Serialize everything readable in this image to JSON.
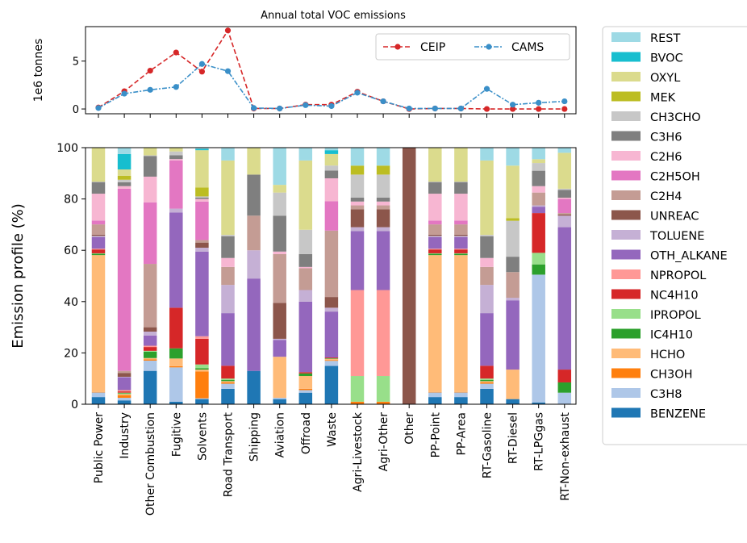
{
  "chart_data": [
    {
      "type": "line",
      "title": "Annual total VOC emissions",
      "ylabel": "1e6 tonnes",
      "ylim": [
        -0.5,
        8.6
      ],
      "yticks": [
        0,
        5
      ],
      "grid": false,
      "legend_position": "top-right",
      "x": [
        "Public Power",
        "Industry",
        "Other Combustion",
        "Fugitive",
        "Solvents",
        "Road Transport",
        "Shipping",
        "Aviation",
        "Offroad",
        "Waste",
        "Agri-Livestock",
        "Agri-Other",
        "Other",
        "PP-Point",
        "PP-Area",
        "RT-Gasoline",
        "RT-Diesel",
        "RT-LPGgas",
        "RT-Non-exhaust"
      ],
      "series": [
        {
          "name": "CEIP",
          "color": "#d62728",
          "values": [
            0.15,
            1.85,
            4.0,
            5.9,
            3.9,
            8.2,
            0.05,
            0.05,
            0.45,
            0.45,
            1.8,
            0.8,
            0.0,
            0.05,
            0.05,
            0.0,
            0.0,
            0.0,
            0.0
          ]
        },
        {
          "name": "CAMS",
          "color": "#3a8fc8",
          "values": [
            0.1,
            1.6,
            2.0,
            2.3,
            4.7,
            3.95,
            0.1,
            0.05,
            0.4,
            0.3,
            1.7,
            0.8,
            0.05,
            0.05,
            0.05,
            2.1,
            0.45,
            0.65,
            0.8
          ]
        }
      ]
    },
    {
      "type": "bar",
      "stacked": true,
      "ylabel": "Emission profile (%)",
      "ylim": [
        0,
        100
      ],
      "yticks": [
        0,
        20,
        40,
        60,
        80,
        100
      ],
      "grid": false,
      "legend_position": "right-outside",
      "categories": [
        "Public Power",
        "Industry",
        "Other Combustion",
        "Fugitive",
        "Solvents",
        "Road Transport",
        "Shipping",
        "Aviation",
        "Offroad",
        "Waste",
        "Agri-Livestock",
        "Agri-Other",
        "Other",
        "PP-Point",
        "PP-Area",
        "RT-Gasoline",
        "RT-Diesel",
        "RT-LPGgas",
        "RT-Non-exhaust"
      ],
      "species": [
        {
          "name": "BENZENE",
          "color": "#1f77b4"
        },
        {
          "name": "C3H8",
          "color": "#aec7e8"
        },
        {
          "name": "CH3OH",
          "color": "#ff7f0e"
        },
        {
          "name": "HCHO",
          "color": "#ffbb78"
        },
        {
          "name": "IC4H10",
          "color": "#2ca02c"
        },
        {
          "name": "IPROPOL",
          "color": "#98df8a"
        },
        {
          "name": "NC4H10",
          "color": "#d62728"
        },
        {
          "name": "NPROPOL",
          "color": "#ff9896"
        },
        {
          "name": "OTH_ALKANE",
          "color": "#9467bd"
        },
        {
          "name": "TOLUENE",
          "color": "#c5b0d5"
        },
        {
          "name": "UNREAC",
          "color": "#8c564b"
        },
        {
          "name": "C2H4",
          "color": "#c49c94"
        },
        {
          "name": "C2H5OH",
          "color": "#e377c2"
        },
        {
          "name": "C2H6",
          "color": "#f7b6d2"
        },
        {
          "name": "C3H6",
          "color": "#7f7f7f"
        },
        {
          "name": "CH3CHO",
          "color": "#c7c7c7"
        },
        {
          "name": "MEK",
          "color": "#bcbd22"
        },
        {
          "name": "OXYL",
          "color": "#dbdb8d"
        },
        {
          "name": "BVOC",
          "color": "#17becf"
        },
        {
          "name": "REST",
          "color": "#9edae5"
        }
      ],
      "profiles": [
        [
          2.8,
          1.8,
          0.2,
          53.5,
          0.5,
          0.2,
          1.5,
          0.3,
          4.5,
          0.5,
          0.5,
          4.0,
          1.5,
          10.5,
          4.5,
          0.3,
          0.2,
          13.0,
          0.0,
          0.0
        ],
        [
          1.5,
          1.0,
          1.0,
          0.5,
          0.3,
          0.2,
          0.5,
          0.5,
          5.0,
          0.2,
          1.5,
          0.8,
          71.0,
          1.0,
          1.5,
          1.0,
          1.5,
          2.5,
          6.0,
          2.5
        ],
        [
          13.0,
          4.0,
          0.5,
          0.5,
          2.5,
          0.3,
          1.5,
          0.5,
          4.0,
          1.5,
          1.7,
          24.7,
          24.0,
          10.0,
          8.0,
          0.3,
          0.0,
          3.0,
          0.0,
          0.0
        ],
        [
          1.0,
          13.5,
          0.5,
          3.0,
          4.0,
          0.0,
          16.0,
          0.0,
          37.5,
          1.5,
          0.0,
          0.0,
          19.0,
          0.5,
          1.5,
          1.5,
          0.0,
          1.5,
          0.0,
          0.0
        ],
        [
          2.0,
          0.3,
          10.5,
          0.7,
          0.5,
          1.5,
          10.0,
          1.0,
          33.0,
          1.5,
          2.0,
          1.0,
          15.0,
          1.0,
          0.5,
          0.5,
          3.5,
          14.5,
          0.5,
          0.5
        ],
        [
          6.0,
          2.0,
          0.5,
          0.5,
          0.5,
          0.5,
          5.0,
          0.0,
          20.5,
          11.0,
          0.0,
          7.0,
          0.0,
          3.5,
          8.5,
          0.5,
          0.0,
          29.0,
          0.0,
          5.0
        ],
        [
          13.0,
          0.0,
          0.0,
          0.0,
          0.0,
          0.0,
          0.0,
          0.0,
          36.0,
          11.0,
          0.0,
          13.5,
          0.0,
          0.0,
          16.0,
          0.0,
          0.0,
          10.5,
          0.0,
          0.0
        ],
        [
          2.0,
          0.5,
          0.0,
          16.0,
          0.0,
          0.0,
          0.0,
          0.0,
          6.5,
          0.5,
          14.0,
          19.0,
          0.0,
          1.0,
          14.0,
          9.0,
          0.0,
          3.0,
          0.0,
          14.5
        ],
        [
          4.5,
          1.0,
          0.5,
          5.0,
          1.0,
          0.0,
          0.5,
          0.0,
          27.5,
          4.5,
          0.0,
          8.5,
          0.0,
          0.5,
          5.0,
          9.5,
          0.0,
          27.0,
          0.0,
          5.0
        ],
        [
          15.0,
          2.0,
          0.3,
          0.5,
          0.2,
          0.0,
          0.3,
          0.0,
          18.0,
          1.5,
          4.2,
          26.0,
          11.5,
          9.0,
          3.0,
          2.0,
          0.0,
          4.5,
          1.5,
          1.0
        ],
        [
          0.0,
          0.0,
          1.0,
          0.0,
          0.0,
          10.0,
          0.0,
          33.5,
          23.0,
          1.5,
          7.0,
          1.5,
          0.0,
          1.5,
          1.5,
          9.0,
          3.5,
          0.0,
          0.0,
          7.0
        ],
        [
          0.0,
          0.0,
          1.0,
          0.0,
          0.0,
          10.0,
          0.0,
          33.5,
          23.0,
          1.5,
          7.0,
          1.5,
          0.0,
          1.5,
          1.5,
          9.0,
          3.5,
          0.0,
          0.0,
          7.0
        ],
        [
          0.0,
          0.0,
          0.0,
          0.0,
          0.0,
          0.0,
          0.0,
          0.0,
          0.0,
          0.0,
          100.0,
          0.0,
          0.0,
          0.0,
          0.0,
          0.0,
          0.0,
          0.0,
          0.0,
          0.0
        ],
        [
          2.8,
          1.8,
          0.2,
          53.5,
          0.5,
          0.2,
          1.5,
          0.3,
          4.5,
          0.5,
          0.5,
          4.0,
          1.5,
          10.5,
          4.5,
          0.3,
          0.2,
          13.0,
          0.0,
          0.0
        ],
        [
          2.8,
          1.8,
          0.2,
          53.5,
          0.5,
          0.2,
          1.5,
          0.3,
          4.5,
          0.5,
          0.5,
          4.0,
          1.5,
          10.5,
          4.5,
          0.3,
          0.2,
          13.0,
          0.0,
          0.0
        ],
        [
          6.0,
          2.0,
          0.5,
          0.5,
          0.5,
          0.5,
          5.0,
          0.0,
          20.5,
          11.0,
          0.0,
          7.0,
          0.0,
          3.5,
          8.5,
          0.5,
          0.0,
          29.0,
          0.0,
          5.0
        ],
        [
          2.0,
          0.0,
          0.0,
          11.5,
          0.0,
          0.0,
          0.0,
          0.0,
          27.0,
          1.0,
          0.0,
          10.0,
          0.0,
          0.0,
          6.0,
          14.0,
          1.0,
          20.5,
          0.0,
          7.0
        ],
        [
          0.7,
          49.8,
          0.0,
          0.0,
          4.0,
          4.5,
          15.5,
          0.0,
          2.5,
          0.5,
          0.0,
          5.0,
          0.0,
          2.5,
          6.0,
          3.0,
          0.0,
          1.5,
          0.0,
          4.5
        ],
        [
          0.0,
          4.5,
          0.0,
          0.0,
          4.0,
          0.0,
          5.0,
          0.0,
          55.5,
          4.5,
          0.5,
          0.5,
          5.5,
          0.5,
          3.0,
          0.5,
          0.0,
          14.0,
          0.0,
          2.0
        ]
      ]
    }
  ]
}
